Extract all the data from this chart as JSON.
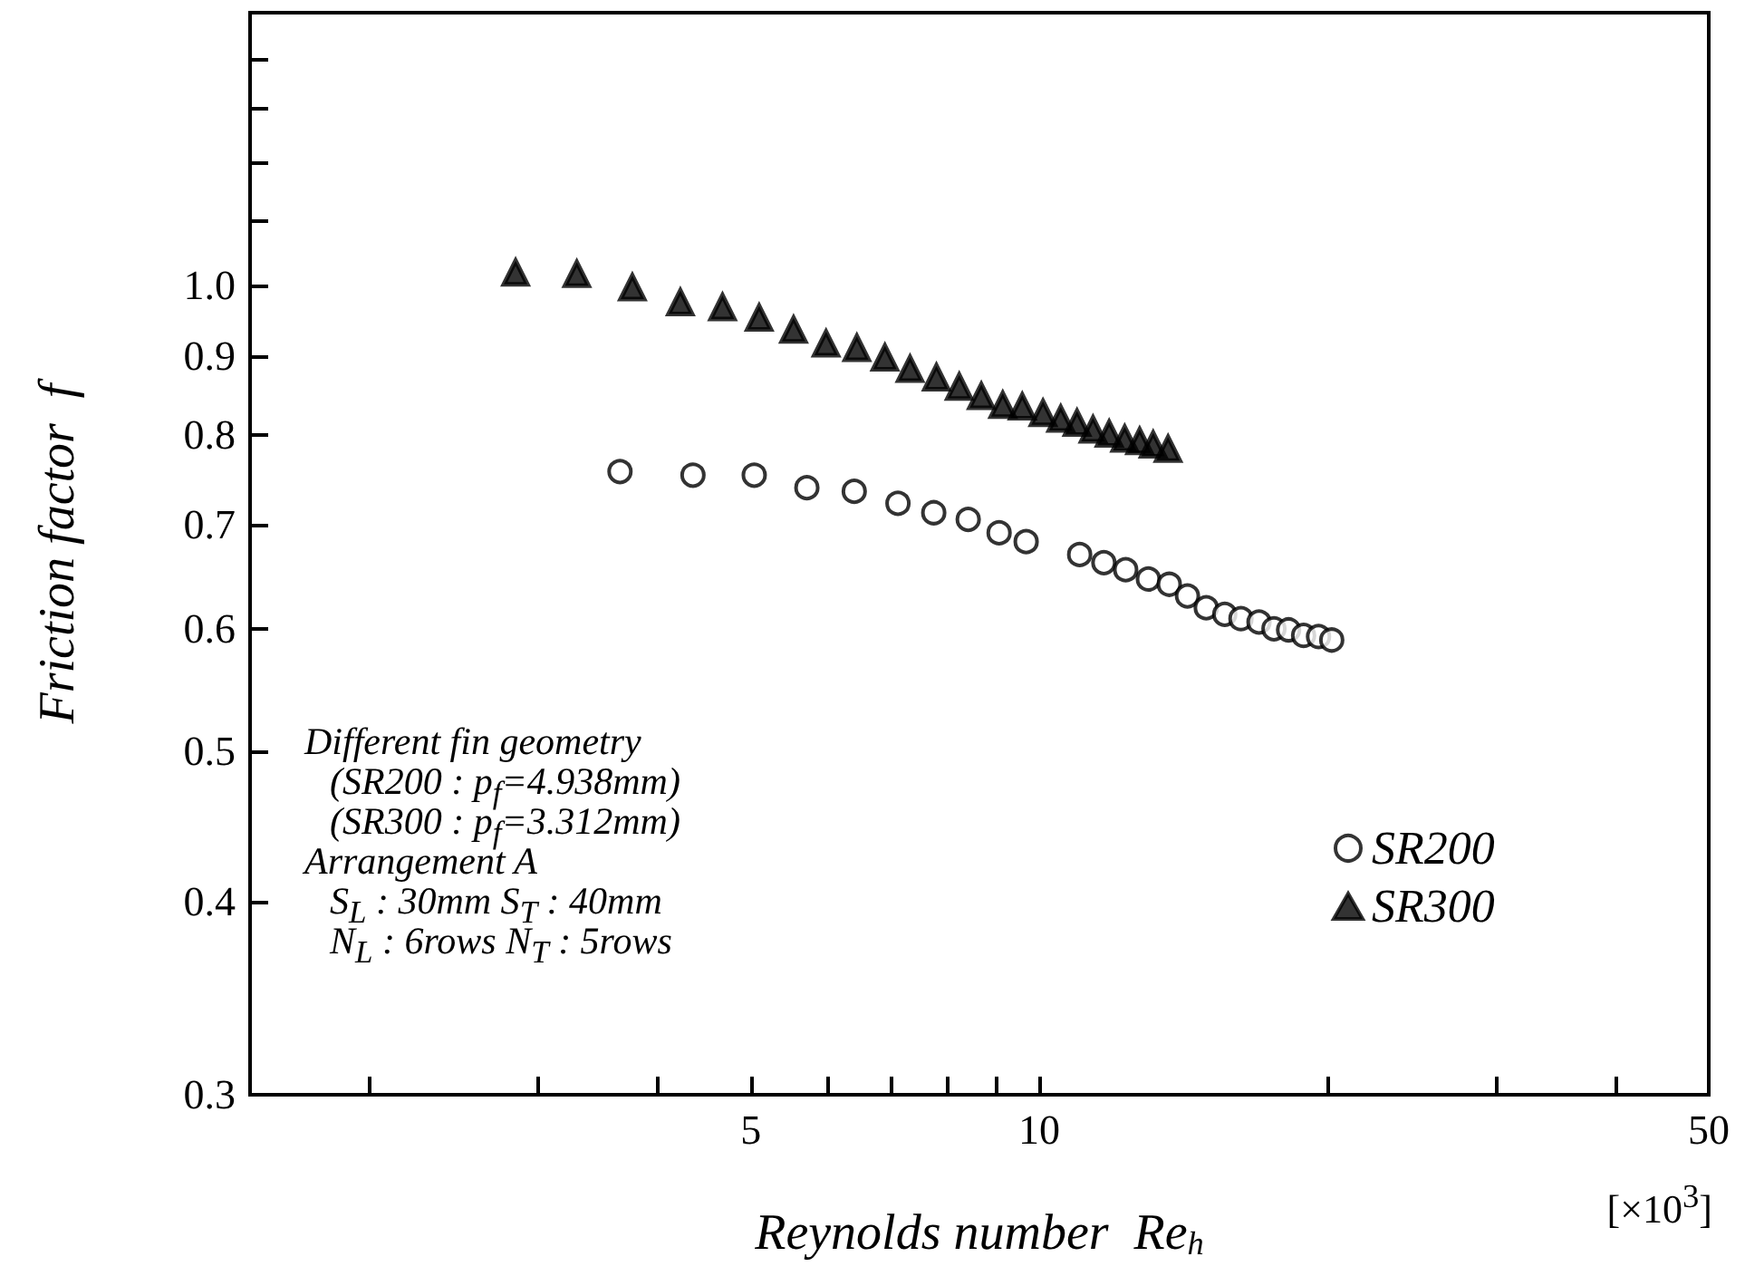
{
  "chart_data": {
    "type": "scatter",
    "xlabel": "Reynolds number  Re$_{h}$",
    "ylabel": "Friction factor  f",
    "annotations": [
      "Different fin geometry",
      "(SR200 : p$_{f}$=4.938mm)",
      "(SR300 : p$_{f}$=3.312mm)",
      "Arrangement A",
      "S$_{L}$ : 30mm  S$_{T}$ : 40mm",
      "N$_{L}$ : 6rows  N$_{T}$ : 5rows",
      "[×10$^{3}$]"
    ],
    "log": "xy",
    "xlim": [
      1.5,
      50
    ],
    "xticks": [
      {
        "value": 2,
        "label": null
      },
      {
        "value": 3,
        "label": null
      },
      {
        "value": 4,
        "label": null
      },
      5,
      {
        "value": 6,
        "label": null
      },
      {
        "value": 7,
        "label": null
      },
      {
        "value": 8,
        "label": null
      },
      {
        "value": 9,
        "label": null
      },
      10,
      {
        "value": 20,
        "label": null
      },
      {
        "value": 30,
        "label": null
      },
      {
        "value": 40,
        "label": null
      },
      50
    ],
    "ylim": [
      0.3,
      1.5
    ],
    "yticks": [
      {
        "value": 0.3,
        "label": "0.3"
      },
      {
        "value": 0.4,
        "label": "0.4"
      },
      {
        "value": 0.5,
        "label": "0.5"
      },
      {
        "value": 0.6,
        "label": "0.6"
      },
      {
        "value": 0.7,
        "label": "0.7"
      },
      {
        "value": 0.8,
        "label": "0.8"
      },
      {
        "value": 0.9,
        "label": "0.9"
      },
      {
        "value": 1.0,
        "label": "1.0"
      },
      {
        "value": 1.1,
        "label": null
      },
      {
        "value": 1.2,
        "label": null
      },
      {
        "value": 1.3,
        "label": null
      },
      {
        "value": 1.4,
        "label": null
      }
    ],
    "grid": false,
    "legend": "bottom right",
    "series": [
      {
        "name": "SR200",
        "color": "#000000",
        "marker": "circle",
        "x": [
          3.65,
          4.35,
          5.04,
          5.72,
          6.41,
          7.12,
          7.76,
          8.43,
          9.08,
          9.69,
          11.02,
          11.68,
          12.31,
          13.0,
          13.67,
          14.28,
          14.94,
          15.62,
          16.24,
          16.96,
          17.58,
          18.21,
          18.88,
          19.57,
          20.2
        ],
        "values": [
          0.758,
          0.754,
          0.754,
          0.74,
          0.736,
          0.723,
          0.713,
          0.706,
          0.692,
          0.683,
          0.67,
          0.662,
          0.655,
          0.646,
          0.641,
          0.63,
          0.619,
          0.613,
          0.609,
          0.606,
          0.6,
          0.599,
          0.594,
          0.593,
          0.59
        ]
      },
      {
        "name": "SR300",
        "color": "#000000",
        "marker": "triangle",
        "x": [
          2.84,
          3.29,
          3.76,
          4.22,
          4.67,
          5.1,
          5.54,
          5.99,
          6.45,
          6.9,
          7.33,
          7.81,
          8.25,
          8.7,
          9.16,
          9.6,
          10.09,
          10.53,
          10.95,
          11.38,
          11.83,
          12.28,
          12.73,
          13.15,
          13.63
        ],
        "values": [
          1.019,
          1.017,
          0.997,
          0.975,
          0.968,
          0.953,
          0.936,
          0.917,
          0.911,
          0.898,
          0.883,
          0.872,
          0.86,
          0.848,
          0.837,
          0.835,
          0.827,
          0.82,
          0.815,
          0.807,
          0.802,
          0.796,
          0.793,
          0.789,
          0.784
        ]
      }
    ]
  }
}
